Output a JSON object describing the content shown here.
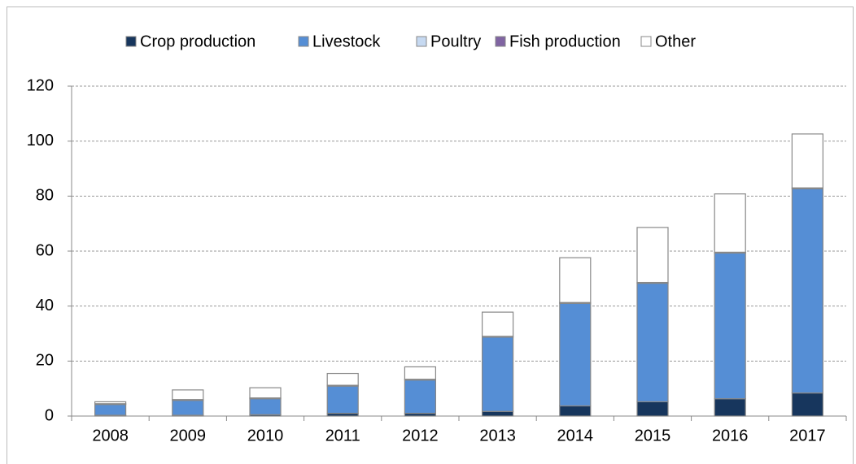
{
  "chart_data": {
    "type": "stacked_bar",
    "categories": [
      "2008",
      "2009",
      "2010",
      "2011",
      "2012",
      "2013",
      "2014",
      "2015",
      "2016",
      "2017"
    ],
    "series": [
      {
        "name": "Crop production",
        "color": "#17365d",
        "values": [
          0.3,
          0.3,
          0.5,
          1,
          1,
          1.7,
          3.7,
          5.2,
          6.3,
          8.4
        ]
      },
      {
        "name": "Livestock",
        "color": "#558ed5",
        "values": [
          3.9,
          5.4,
          5.8,
          9.9,
          12.1,
          27,
          37.3,
          43.1,
          53,
          74.3
        ]
      },
      {
        "name": "Poultry",
        "color": "#c6d9f1",
        "values": [
          0.3,
          0.3,
          0.3,
          0.3,
          0.3,
          0.3,
          0.3,
          0.3,
          0.3,
          0.3
        ]
      },
      {
        "name": "Fish production",
        "color": "#8064a2",
        "values": [
          0,
          0,
          0,
          0,
          0,
          0,
          0,
          0,
          0,
          0
        ]
      },
      {
        "name": "Other",
        "color": "#ffffff",
        "values": [
          0.7,
          3.5,
          3.7,
          4.3,
          4.5,
          8.8,
          16.3,
          20,
          21.2,
          19.6
        ]
      }
    ],
    "ylim": [
      0,
      120
    ],
    "yticks": [
      0,
      20,
      40,
      60,
      80,
      100,
      120
    ],
    "grid": true,
    "legend": "top"
  }
}
